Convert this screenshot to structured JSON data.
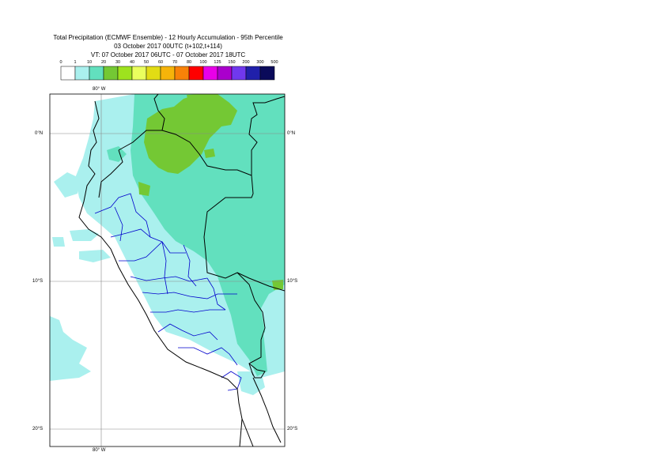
{
  "header": {
    "title_line1": "Total Precipitation (ECMWF Ensemble) - 12 Hourly Accumulation - 95th Percentile",
    "title_line2": "03 October 2017 00UTC (t+102,t+114)",
    "title_line3": "VT: 07 October 2017 06UTC - 07 October 2017 18UTC"
  },
  "legend": {
    "ticks": [
      "0",
      "1",
      "10",
      "20",
      "30",
      "40",
      "50",
      "60",
      "70",
      "80",
      "100",
      "125",
      "150",
      "200",
      "300",
      "500"
    ],
    "colors": [
      "#ffffff",
      "#aaf0ee",
      "#62e0be",
      "#74c834",
      "#9ee21e",
      "#eaff5e",
      "#e2dc14",
      "#f6b40a",
      "#f88208",
      "#ff0000",
      "#e800e8",
      "#aa00cc",
      "#7038ee",
      "#2020aa",
      "#0a0a5a"
    ]
  },
  "map": {
    "lon_label_top": "80° W",
    "lon_label_bottom": "80° W",
    "lat_labels_left": [
      "0°N",
      "10°S",
      "20°S"
    ],
    "lat_labels_right": [
      "0°N",
      "10°S",
      "20°S"
    ],
    "colors": {
      "border": "#000000",
      "regions": "#0000cc",
      "grid": "#888888"
    }
  }
}
